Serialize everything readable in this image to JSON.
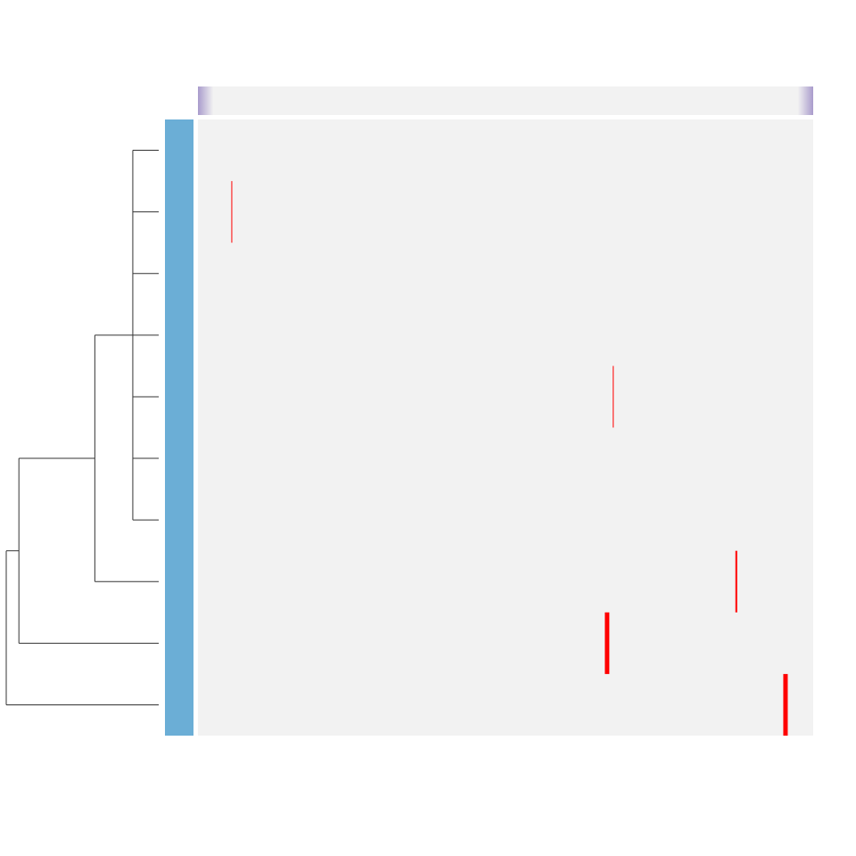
{
  "chart_data": {
    "type": "heatmap",
    "title": "",
    "xlabel": "",
    "ylabel": "",
    "rows": 10,
    "cols": 100,
    "row_labels": [],
    "col_labels": [],
    "legend": "none",
    "background_value_color": "#f2f2f2",
    "high_value_color": "#ff0000",
    "row_annotation_color": "#6baed6",
    "col_annotation_edge_color": "#9e8fc2",
    "cells": [
      {
        "row": 1,
        "col": 5,
        "value": 0.2
      },
      {
        "row": 4,
        "col": 67,
        "value": 0.2
      },
      {
        "row": 7,
        "col": 87,
        "value": 0.4
      },
      {
        "row": 8,
        "col": 66,
        "value": 1.0
      },
      {
        "row": 9,
        "col": 95,
        "value": 1.0
      }
    ],
    "row_dendrogram": {
      "merges": [
        {
          "members": [
            0,
            1,
            2,
            3,
            4,
            5,
            6
          ],
          "height": 0.0
        },
        {
          "members": [
            0,
            1,
            2,
            3,
            4,
            5,
            6,
            7
          ],
          "height": 0.3
        },
        {
          "members": [
            0,
            1,
            2,
            3,
            4,
            5,
            6,
            7,
            8
          ],
          "height": 0.9
        },
        {
          "members": [
            0,
            1,
            2,
            3,
            4,
            5,
            6,
            7,
            8,
            9
          ],
          "height": 1.0
        }
      ]
    }
  }
}
